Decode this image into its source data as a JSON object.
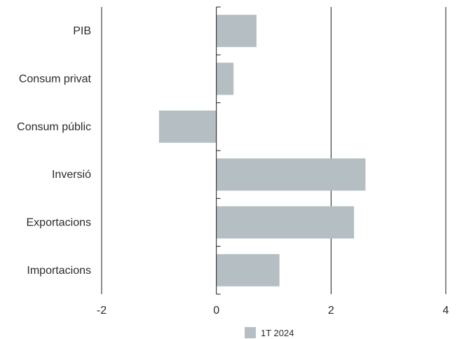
{
  "chart_data": {
    "type": "bar",
    "orientation": "horizontal",
    "categories": [
      "PIB",
      "Consum privat",
      "Consum públic",
      "Inversió",
      "Exportacions",
      "Importacions"
    ],
    "series": [
      {
        "name": "1T 2024",
        "values": [
          0.7,
          0.3,
          -1.0,
          2.6,
          2.4,
          1.1
        ]
      }
    ],
    "x_ticks": [
      -2,
      0,
      2,
      4
    ],
    "xlim": [
      -2,
      4
    ],
    "grid": "vertical lines at ticks",
    "legend_position": "bottom-center",
    "colors": {
      "bar": "#b5bec2",
      "axis": "#1a1a1a",
      "text": "#2b2b2b"
    }
  }
}
